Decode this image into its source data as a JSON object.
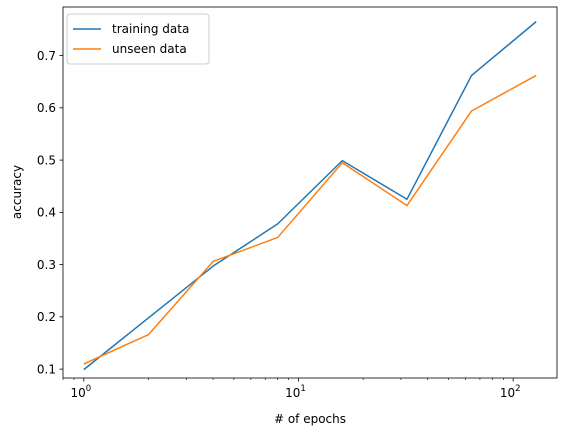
{
  "chart_data": {
    "type": "line",
    "title": "",
    "xlabel": "# of epochs",
    "ylabel": "accuracy",
    "xscale": "log",
    "xlim": [
      0.8,
      160
    ],
    "ylim": [
      0.083,
      0.793
    ],
    "grid": false,
    "legend_position": "top-left",
    "x": [
      1,
      2,
      4,
      8,
      16,
      32,
      64,
      128
    ],
    "series": [
      {
        "name": "training data",
        "color": "#1f77b4",
        "values": [
          0.099,
          0.198,
          0.297,
          0.378,
          0.499,
          0.425,
          0.662,
          0.765
        ]
      },
      {
        "name": "unseen data",
        "color": "#ff7f0e",
        "values": [
          0.11,
          0.166,
          0.306,
          0.352,
          0.495,
          0.413,
          0.594,
          0.662
        ]
      }
    ],
    "x_ticks": [
      {
        "base": "10",
        "exp": "0",
        "value": 1
      },
      {
        "base": "10",
        "exp": "1",
        "value": 10
      },
      {
        "base": "10",
        "exp": "2",
        "value": 100
      }
    ],
    "y_ticks": [
      {
        "label": "0.1",
        "value": 0.1
      },
      {
        "label": "0.2",
        "value": 0.2
      },
      {
        "label": "0.3",
        "value": 0.3
      },
      {
        "label": "0.4",
        "value": 0.4
      },
      {
        "label": "0.5",
        "value": 0.5
      },
      {
        "label": "0.6",
        "value": 0.6
      },
      {
        "label": "0.7",
        "value": 0.7
      }
    ]
  }
}
